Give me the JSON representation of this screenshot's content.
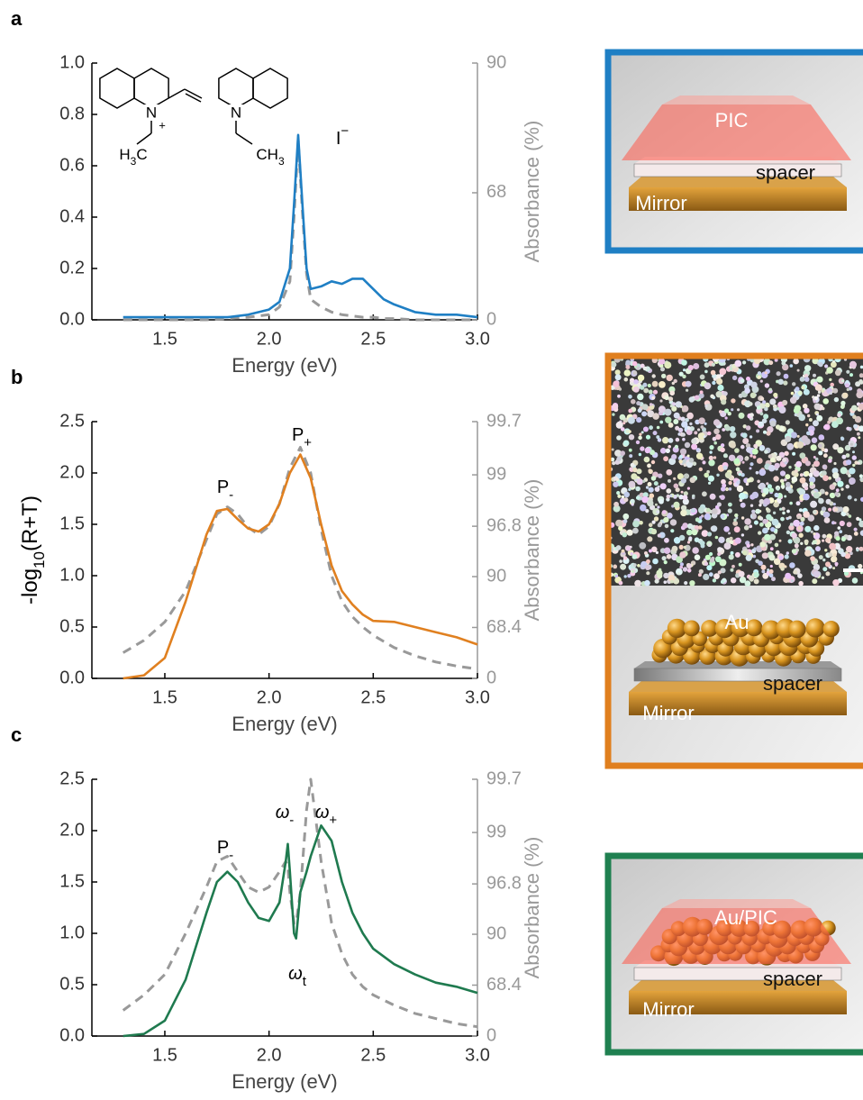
{
  "chart_data": [
    {
      "type": "line",
      "panel": "a",
      "xlabel": "Energy (eV)",
      "y2label": "Absorbance (%)",
      "xlim": [
        1.15,
        3.0
      ],
      "xticks": [
        1.5,
        {
          "value": 2.0,
          "label": "2.0"
        },
        2.5,
        {
          "value": 3.0,
          "label": "3.0"
        }
      ],
      "ylim": [
        0,
        1.0
      ],
      "yticks": [
        {
          "value": 0,
          "label": "0.0"
        },
        0.2,
        0.4,
        0.6,
        0.8,
        {
          "value": 1.0,
          "label": "1.0"
        }
      ],
      "y2lim": [
        0,
        90
      ],
      "y2ticks": [
        0,
        68,
        90
      ],
      "y2scale": "absorbance",
      "x": [
        1.3,
        1.4,
        1.5,
        1.6,
        1.7,
        1.8,
        1.9,
        2.0,
        2.05,
        2.1,
        2.12,
        2.14,
        2.16,
        2.18,
        2.2,
        2.25,
        2.3,
        2.35,
        2.4,
        2.45,
        2.5,
        2.55,
        2.6,
        2.7,
        2.8,
        2.9,
        3.0
      ],
      "series": [
        {
          "color": "#1f7fc4",
          "values": [
            0.01,
            0.01,
            0.01,
            0.01,
            0.01,
            0.01,
            0.02,
            0.04,
            0.07,
            0.2,
            0.45,
            0.72,
            0.45,
            0.2,
            0.12,
            0.13,
            0.15,
            0.14,
            0.16,
            0.16,
            0.12,
            0.08,
            0.06,
            0.03,
            0.02,
            0.02,
            0.01
          ]
        },
        {
          "color": "#999999",
          "dash": true,
          "values": [
            0,
            0,
            0,
            0,
            0,
            0.005,
            0.01,
            0.02,
            0.05,
            0.15,
            0.4,
            0.7,
            0.42,
            0.18,
            0.08,
            0.05,
            0.03,
            0.02,
            0.015,
            0.01,
            0.01,
            0.005,
            0.005,
            0,
            0,
            0,
            0
          ]
        }
      ],
      "annotations": [
        {
          "text": "I",
          "sup": "−"
        }
      ],
      "molecule": {
        "n1": "N",
        "charge": "+",
        "n2": "N",
        "left_group": [
          "H",
          "3",
          "C"
        ],
        "right_group": [
          "CH",
          "3"
        ]
      }
    },
    {
      "type": "line",
      "panel": "b",
      "xlabel": "Energy (eV)",
      "ylabel": [
        "-log",
        "10",
        "(R+T)"
      ],
      "y2label": "Absorbance (%)",
      "xlim": [
        1.15,
        3.0
      ],
      "xticks": [
        1.5,
        {
          "value": 2.0,
          "label": "2.0"
        },
        2.5,
        {
          "value": 3.0,
          "label": "3.0"
        }
      ],
      "ylim": [
        0,
        2.5
      ],
      "yticks": [
        {
          "value": 0,
          "label": "0.0"
        },
        0.5,
        {
          "value": 1.0,
          "label": "1.0"
        },
        1.5,
        {
          "value": 2.0,
          "label": "2.0"
        },
        2.5
      ],
      "y2lim": [
        0,
        99.7
      ],
      "y2ticks": [
        0,
        68.4,
        90,
        96.8,
        99,
        99.7
      ],
      "y2scale": "absorbance",
      "x": [
        1.3,
        1.4,
        1.5,
        1.6,
        1.7,
        1.75,
        1.8,
        1.85,
        1.9,
        1.95,
        2.0,
        2.05,
        2.1,
        2.15,
        2.2,
        2.25,
        2.3,
        2.35,
        2.4,
        2.45,
        2.5,
        2.6,
        2.7,
        2.8,
        2.9,
        3.0
      ],
      "series": [
        {
          "color": "#e08020",
          "values": [
            0,
            0.03,
            0.2,
            0.75,
            1.4,
            1.63,
            1.65,
            1.55,
            1.46,
            1.43,
            1.5,
            1.7,
            2.0,
            2.18,
            1.95,
            1.5,
            1.1,
            0.85,
            0.72,
            0.62,
            0.56,
            0.55,
            0.5,
            0.45,
            0.4,
            0.33
          ]
        },
        {
          "color": "#999999",
          "dash": true,
          "values": [
            0.25,
            0.37,
            0.55,
            0.85,
            1.35,
            1.6,
            1.67,
            1.6,
            1.47,
            1.4,
            1.48,
            1.7,
            2.05,
            2.25,
            2.0,
            1.45,
            1.0,
            0.75,
            0.6,
            0.5,
            0.42,
            0.3,
            0.22,
            0.16,
            0.12,
            0.09
          ]
        }
      ],
      "annotations": [
        {
          "text": "P",
          "sub": "-"
        },
        {
          "text": "P",
          "sub": "+"
        }
      ]
    },
    {
      "type": "line",
      "panel": "c",
      "xlabel": "Energy (eV)",
      "y2label": "Absorbance (%)",
      "xlim": [
        1.15,
        3.0
      ],
      "xticks": [
        1.5,
        {
          "value": 2.0,
          "label": "2.0"
        },
        2.5,
        {
          "value": 3.0,
          "label": "3.0"
        }
      ],
      "ylim": [
        0,
        2.5
      ],
      "yticks": [
        {
          "value": 0,
          "label": "0.0"
        },
        0.5,
        {
          "value": 1.0,
          "label": "1.0"
        },
        1.5,
        {
          "value": 2.0,
          "label": "2.0"
        },
        2.5
      ],
      "y2lim": [
        0,
        99.7
      ],
      "y2ticks": [
        0,
        68.4,
        90,
        96.8,
        99,
        99.7
      ],
      "y2scale": "absorbance",
      "x": [
        1.3,
        1.4,
        1.5,
        1.6,
        1.7,
        1.75,
        1.8,
        1.85,
        1.9,
        1.95,
        2.0,
        2.05,
        2.08,
        2.09,
        2.1,
        2.12,
        2.13,
        2.15,
        2.18,
        2.2,
        2.25,
        2.3,
        2.35,
        2.4,
        2.45,
        2.5,
        2.6,
        2.7,
        2.8,
        2.9,
        3.0
      ],
      "series": [
        {
          "color": "#1f7a4f",
          "values": [
            0,
            0.02,
            0.15,
            0.55,
            1.2,
            1.5,
            1.6,
            1.5,
            1.3,
            1.15,
            1.12,
            1.3,
            1.7,
            1.87,
            1.6,
            1.0,
            0.95,
            1.4,
            1.6,
            1.75,
            2.05,
            1.9,
            1.5,
            1.2,
            1.0,
            0.85,
            0.7,
            0.6,
            0.52,
            0.48,
            0.42
          ]
        },
        {
          "color": "#999999",
          "dash": true,
          "values": [
            0.25,
            0.4,
            0.6,
            1.0,
            1.45,
            1.7,
            1.75,
            1.6,
            1.45,
            1.4,
            1.45,
            1.6,
            1.7,
            1.65,
            1.4,
            1.1,
            1.1,
            1.4,
            2.2,
            2.5,
            1.7,
            1.1,
            0.8,
            0.6,
            0.48,
            0.4,
            0.3,
            0.22,
            0.17,
            0.12,
            0.09
          ]
        }
      ],
      "annotations": [
        {
          "text": "P",
          "sub": "-"
        },
        {
          "text": "ω",
          "sub": "-"
        },
        {
          "text": "ω",
          "sub": "+"
        },
        {
          "text": "ω",
          "sub": "t"
        }
      ]
    }
  ],
  "illustrations": [
    {
      "labels": [
        "PIC",
        "spacer",
        "Mirror"
      ]
    },
    {
      "labels": [
        "Au",
        "spacer",
        "Mirror"
      ]
    },
    {
      "labels": [
        "Au/PIC",
        "spacer",
        "Mirror"
      ]
    }
  ]
}
